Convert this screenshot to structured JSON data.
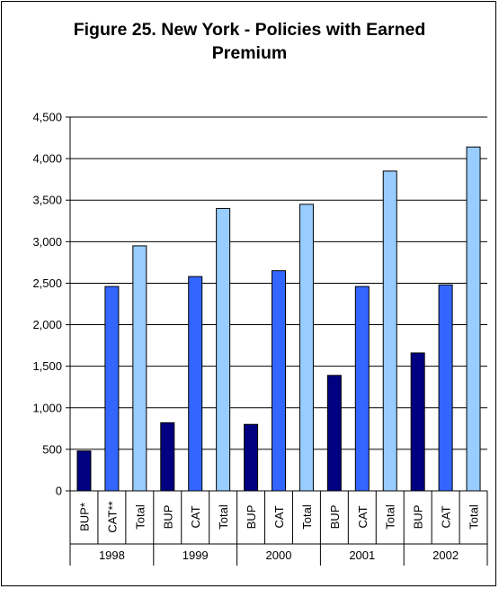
{
  "chart_data": {
    "type": "bar",
    "title_lines": [
      "Figure 25. New York - Policies with Earned",
      "Premium"
    ],
    "ylim": [
      0,
      4500
    ],
    "ytick_step": 500,
    "y_tick_labels": [
      "0",
      "500",
      "1,000",
      "1,500",
      "2,000",
      "2,500",
      "3,000",
      "3,500",
      "4,000",
      "4,500"
    ],
    "grid": true,
    "groups": [
      {
        "year": "1998",
        "bars": [
          {
            "label": "BUP*",
            "value": 480,
            "kind": "BUP"
          },
          {
            "label": "CAT**",
            "value": 2460,
            "kind": "CAT"
          },
          {
            "label": "Total",
            "value": 2950,
            "kind": "Total"
          }
        ]
      },
      {
        "year": "1999",
        "bars": [
          {
            "label": "BUP",
            "value": 820,
            "kind": "BUP"
          },
          {
            "label": "CAT",
            "value": 2580,
            "kind": "CAT"
          },
          {
            "label": "Total",
            "value": 3400,
            "kind": "Total"
          }
        ]
      },
      {
        "year": "2000",
        "bars": [
          {
            "label": "BUP",
            "value": 800,
            "kind": "BUP"
          },
          {
            "label": "CAT",
            "value": 2650,
            "kind": "CAT"
          },
          {
            "label": "Total",
            "value": 3450,
            "kind": "Total"
          }
        ]
      },
      {
        "year": "2001",
        "bars": [
          {
            "label": "BUP",
            "value": 1390,
            "kind": "BUP"
          },
          {
            "label": "CAT",
            "value": 2460,
            "kind": "CAT"
          },
          {
            "label": "Total",
            "value": 3850,
            "kind": "Total"
          }
        ]
      },
      {
        "year": "2002",
        "bars": [
          {
            "label": "BUP",
            "value": 1660,
            "kind": "BUP"
          },
          {
            "label": "CAT",
            "value": 2480,
            "kind": "CAT"
          },
          {
            "label": "Total",
            "value": 4140,
            "kind": "Total"
          }
        ]
      }
    ],
    "colors": {
      "BUP": "#000080",
      "CAT": "#3366ff",
      "Total": "#99ccff"
    }
  }
}
